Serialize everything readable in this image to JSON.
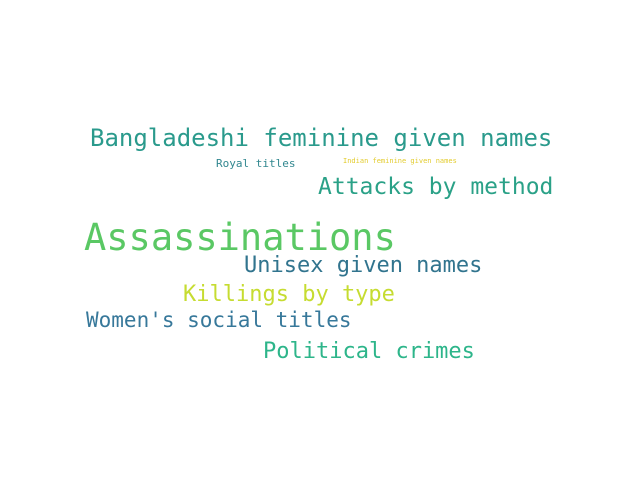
{
  "words": [
    {
      "text": "Bangladeshi feminine given names",
      "color": "#2a9a8c"
    },
    {
      "text": "Royal titles",
      "color": "#31878f"
    },
    {
      "text": "Indian feminine given names",
      "color": "#e3cc2f"
    },
    {
      "text": "Attacks by method",
      "color": "#2aa187"
    },
    {
      "text": "Assassinations",
      "color": "#5ac864"
    },
    {
      "text": "Unisex given names",
      "color": "#31748e"
    },
    {
      "text": "Killings by type",
      "color": "#c6dc31"
    },
    {
      "text": "Women's social titles",
      "color": "#37789a"
    },
    {
      "text": "Political crimes",
      "color": "#2db58a"
    }
  ]
}
